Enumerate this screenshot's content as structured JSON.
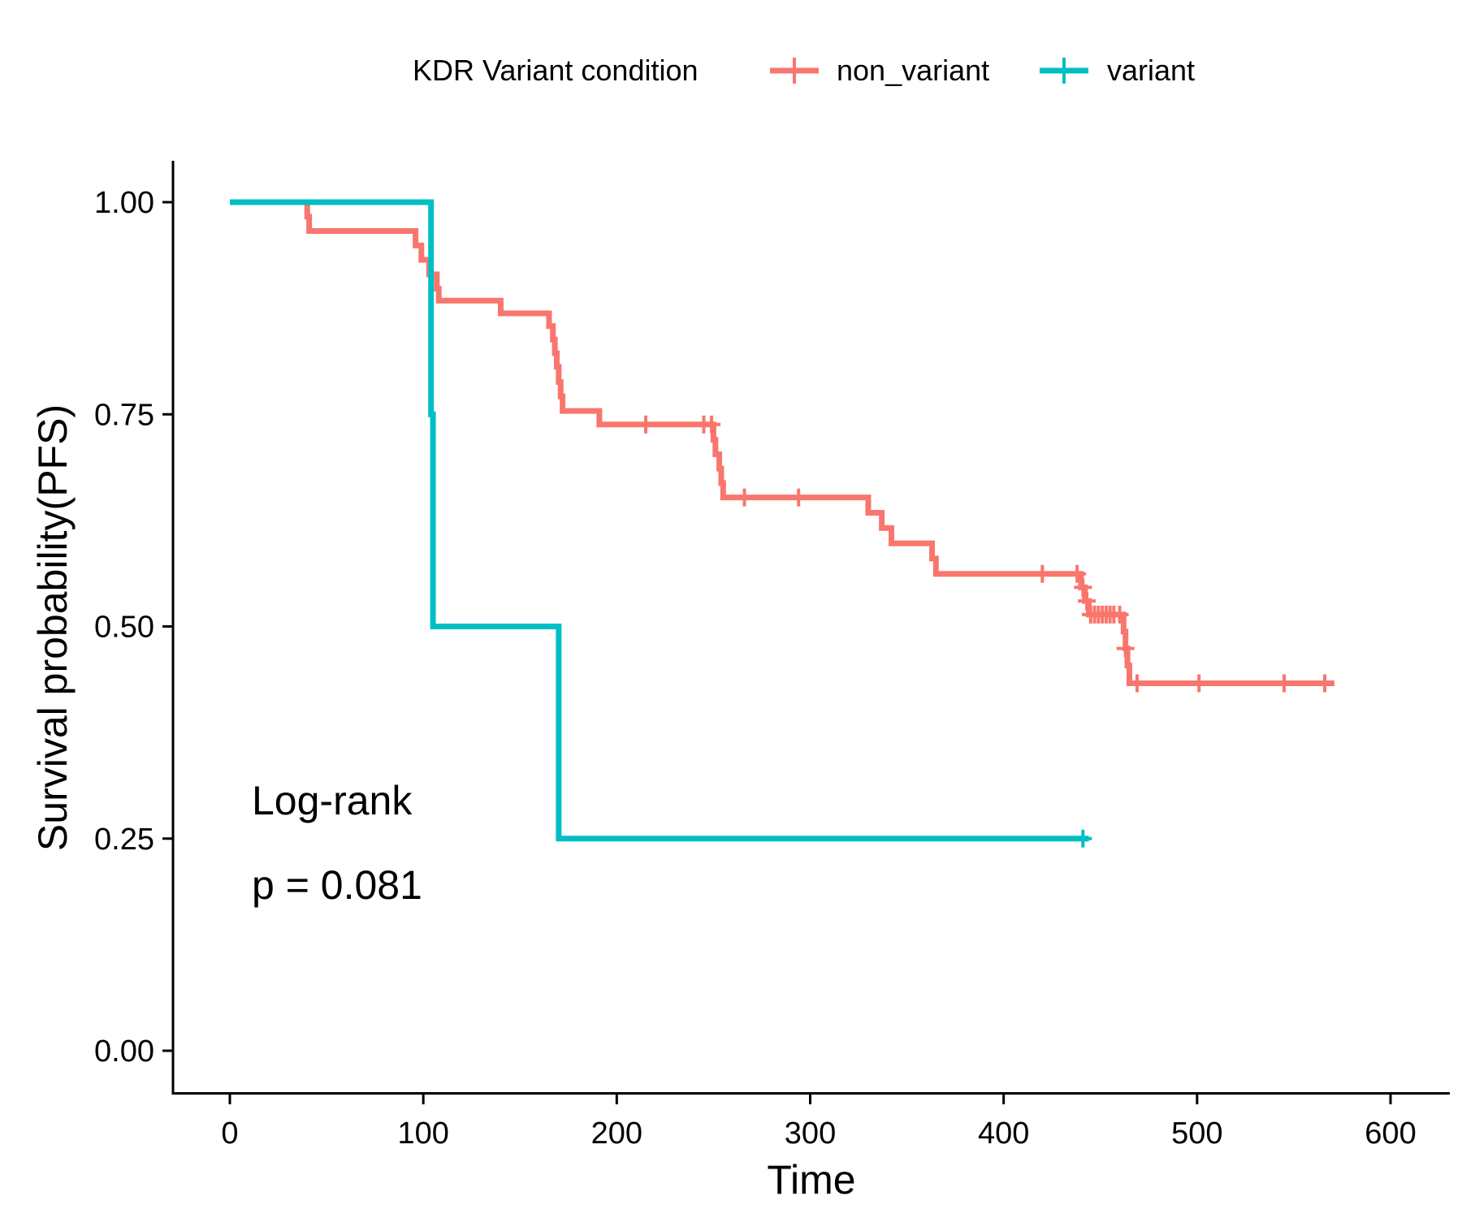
{
  "chart_data": {
    "type": "line",
    "subtype": "kaplan-meier step",
    "xlabel": "Time",
    "ylabel": "Survival probability(PFS)",
    "xlim": [
      -30,
      630
    ],
    "ylim": [
      -0.05,
      1.05
    ],
    "x_ticks": [
      0,
      100,
      200,
      300,
      400,
      500,
      600
    ],
    "y_ticks": [
      0.0,
      0.25,
      0.5,
      0.75,
      1.0
    ],
    "x_tick_labels": [
      "0",
      "100",
      "200",
      "300",
      "400",
      "500",
      "600"
    ],
    "y_tick_labels": [
      "0.00",
      "0.25",
      "0.50",
      "0.75",
      "1.00"
    ],
    "grid": false,
    "legend": {
      "title": "KDR Variant condition",
      "placement": "top",
      "entries": [
        "non_variant",
        "variant"
      ]
    },
    "annotations": {
      "line1": "Log-rank",
      "line2": "p = 0.081"
    },
    "series": [
      {
        "name": "non_variant",
        "color": "#F8766D",
        "steps": [
          [
            0,
            1.0
          ],
          [
            40,
            0.983
          ],
          [
            41,
            0.966
          ],
          [
            96,
            0.949
          ],
          [
            99,
            0.932
          ],
          [
            103,
            0.915
          ],
          [
            107,
            0.898
          ],
          [
            108,
            0.884
          ],
          [
            140,
            0.869
          ],
          [
            165,
            0.854
          ],
          [
            167,
            0.838
          ],
          [
            168,
            0.822
          ],
          [
            169,
            0.806
          ],
          [
            170,
            0.788
          ],
          [
            171,
            0.771
          ],
          [
            172,
            0.754
          ],
          [
            191,
            0.738
          ],
          [
            250,
            0.72
          ],
          [
            251,
            0.703
          ],
          [
            253,
            0.686
          ],
          [
            254,
            0.669
          ],
          [
            255,
            0.652
          ],
          [
            330,
            0.634
          ],
          [
            337,
            0.616
          ],
          [
            342,
            0.598
          ],
          [
            363,
            0.58
          ],
          [
            365,
            0.562
          ],
          [
            440,
            0.546
          ],
          [
            442,
            0.53
          ],
          [
            444,
            0.514
          ],
          [
            462,
            0.494
          ],
          [
            463,
            0.474
          ],
          [
            464,
            0.454
          ],
          [
            465,
            0.433
          ]
        ],
        "end_time": 571,
        "censor_times": [
          215,
          245,
          249,
          266,
          294,
          420,
          438,
          441,
          443,
          445,
          447,
          449,
          451,
          453,
          455,
          457,
          460,
          463,
          469,
          501,
          545,
          566
        ]
      },
      {
        "name": "variant",
        "color": "#00BFC4",
        "steps": [
          [
            0,
            1.0
          ],
          [
            104,
            0.75
          ],
          [
            105,
            0.5
          ],
          [
            170,
            0.25
          ]
        ],
        "end_time": 444,
        "censor_times": [
          441
        ]
      }
    ]
  }
}
